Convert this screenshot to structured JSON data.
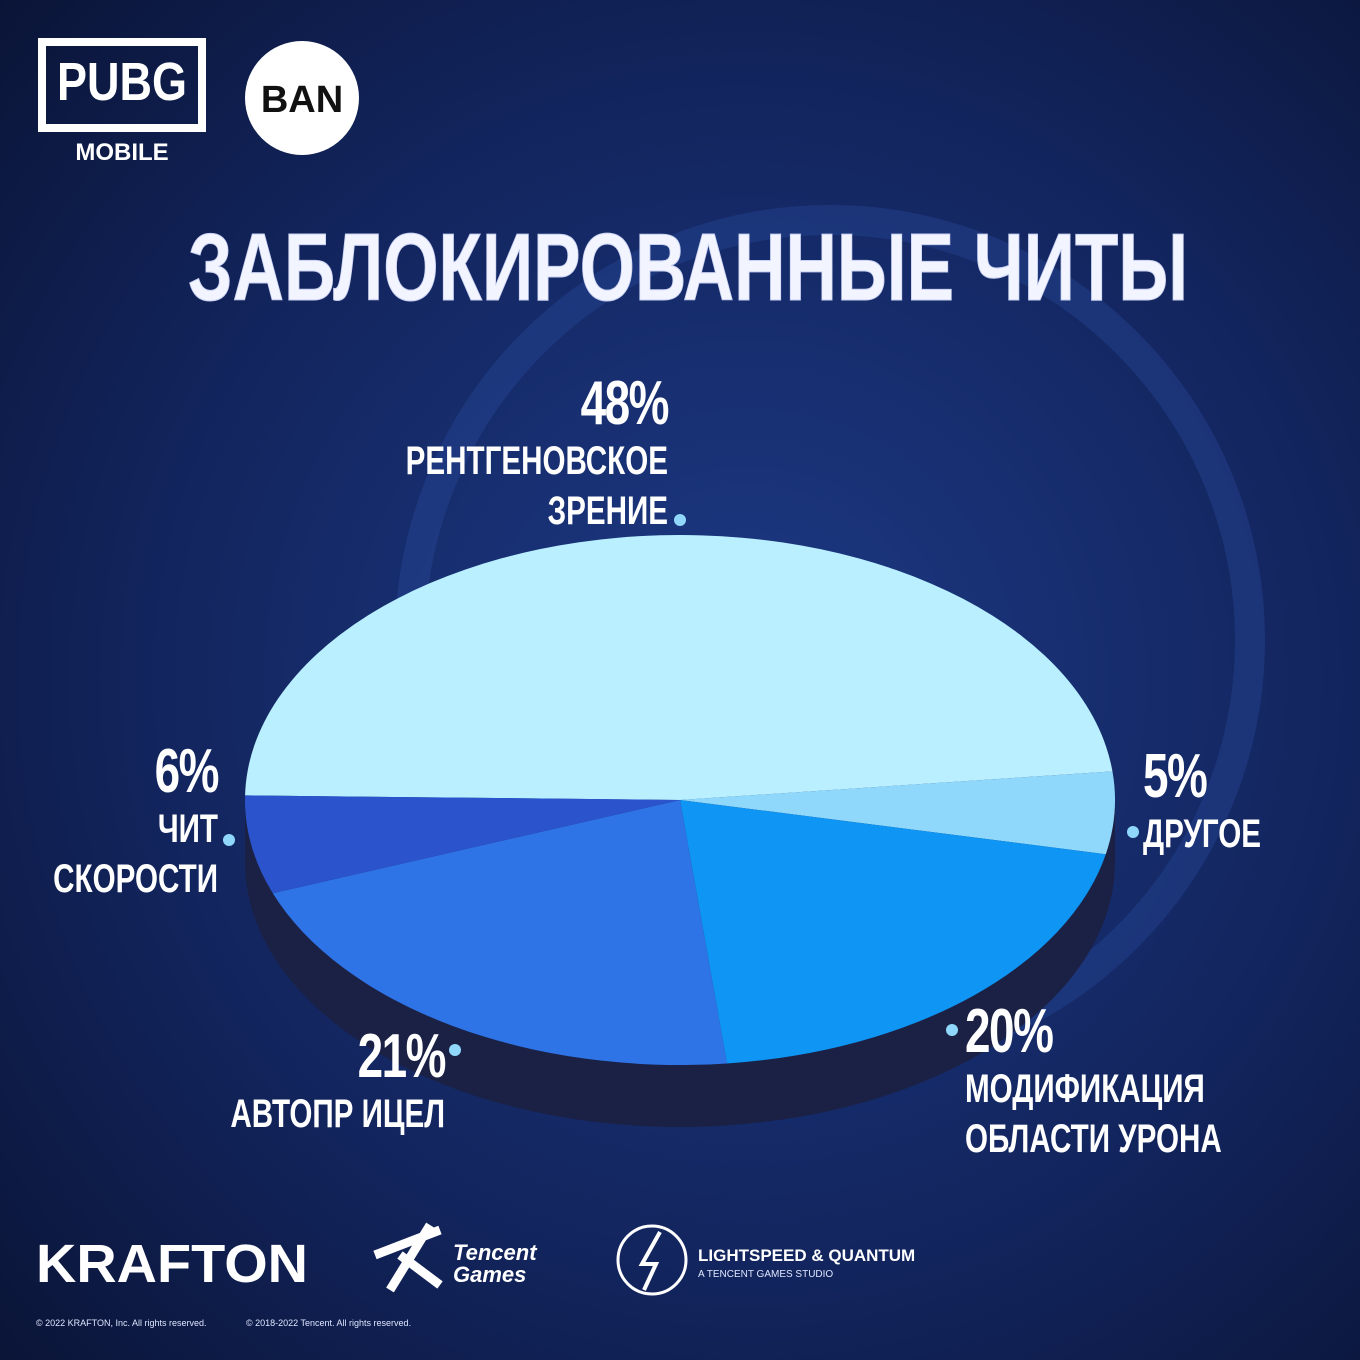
{
  "chart_data": {
    "type": "pie",
    "title": "ЗАБЛОКИРОВАННЫЕ ЧИТЫ",
    "categories": [
      "РЕНТГЕНОВСКОЕ ЗРЕНИЕ",
      "ДРУГОЕ",
      "МОДИФИКАЦИЯ ОБЛАСТИ УРОНА",
      "АВТОПР ИЦЕЛ",
      "ЧИТ СКОРОСТИ"
    ],
    "values": [
      48,
      5,
      20,
      21,
      6
    ],
    "value_labels": [
      "48%",
      "5%",
      "20%",
      "21%",
      "6%"
    ],
    "colors": [
      "#b9efff",
      "#8fd8fb",
      "#0f95f4",
      "#2f74e6",
      "#2b54cc"
    ]
  },
  "branding": {
    "pubg": "PUBG",
    "mobile": "MOBILE",
    "ban": "BAN",
    "krafton": "KRAFTON",
    "tencent": "Tencent",
    "games": "Games",
    "lightspeed": "LIGHTSPEED & QUANTUM",
    "studio": "A TENCENT GAMES STUDIO",
    "copyright": [
      "© 2022 KRAFTON, Inc. All rights reserved.",
      "© 2018-2022 Tencent. All rights reserved."
    ]
  }
}
